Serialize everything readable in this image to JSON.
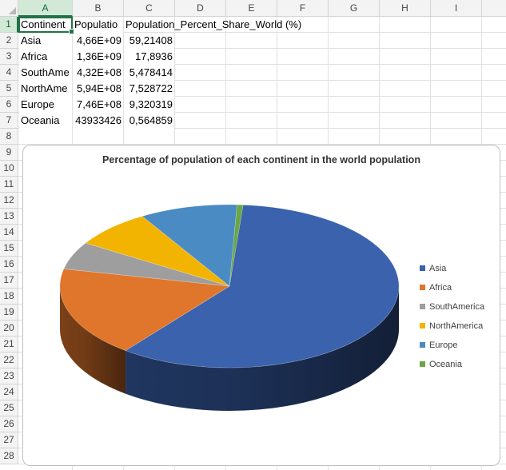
{
  "spreadsheet": {
    "columns": [
      "A",
      "B",
      "C",
      "D",
      "E",
      "F",
      "G",
      "H",
      "I"
    ],
    "rows": [
      "1",
      "2",
      "3",
      "4",
      "5",
      "6",
      "7",
      "8",
      "9",
      "10",
      "11",
      "12",
      "13",
      "14",
      "15",
      "16",
      "17",
      "18",
      "19",
      "20",
      "21",
      "22",
      "23",
      "24",
      "25",
      "26",
      "27",
      "28"
    ],
    "header_row": {
      "a": "Continent",
      "b": "Populatio",
      "c": "Population_Percent_Share_World (%)"
    },
    "data_rows": [
      {
        "continent": "Asia",
        "population": "4,66E+09",
        "share": "59,21408"
      },
      {
        "continent": "Africa",
        "population": "1,36E+09",
        "share": "17,8936"
      },
      {
        "continent": "SouthAme",
        "population": "4,32E+08",
        "share": "5,478414"
      },
      {
        "continent": "NorthAme",
        "population": "5,94E+08",
        "share": "7,528722"
      },
      {
        "continent": "Europe",
        "population": "7,46E+08",
        "share": "9,320319"
      },
      {
        "continent": "Oceania",
        "population": "43933426",
        "share": "0,564859"
      }
    ]
  },
  "chart_data": {
    "type": "pie",
    "title": "Percentage of population of each continent in the world population",
    "categories": [
      "Asia",
      "Africa",
      "SouthAmerica",
      "NorthAmerica",
      "Europe",
      "Oceania"
    ],
    "values": [
      59.21408,
      17.8936,
      5.478414,
      7.528722,
      9.320319,
      0.564859
    ],
    "colors": [
      "#3a62ad",
      "#e0762b",
      "#9e9e9e",
      "#f2b400",
      "#4a8bc4",
      "#6ba644"
    ],
    "style": "3d",
    "legend_position": "right"
  },
  "colors": {
    "selection": "#217346",
    "selected_header_bg": "#d3e9d8"
  }
}
